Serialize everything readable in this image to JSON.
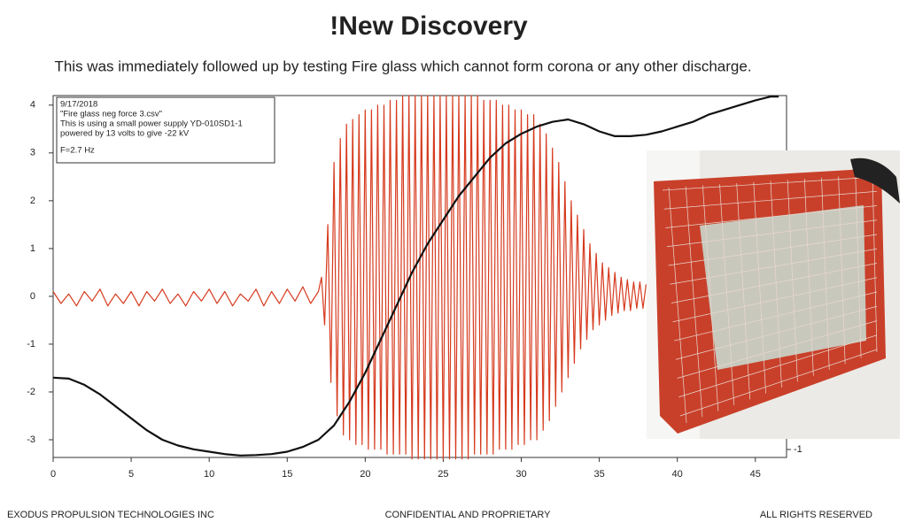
{
  "title": "!New Discovery",
  "subtitle": "This was immediately followed up by testing Fire glass which cannot form corona or any other discharge.",
  "footer": {
    "left": "EXODUS PROPULSION TECHNOLOGIES INC",
    "center": "CONFIDENTIAL  AND  PROPRIETARY",
    "right": "ALL RIGHTS RESERVED"
  },
  "chart_data": {
    "type": "line",
    "annotation": [
      "9/17/2018",
      "\"Fire glass neg force 3.csv\"",
      "This is using a small power supply YD-010SD1-1",
      "powered by 13 volts to give -22 kV",
      "F=2.7 Hz"
    ],
    "xlim": [
      0,
      47
    ],
    "xticks": [
      0,
      5,
      10,
      15,
      20,
      25,
      30,
      35,
      40,
      45
    ],
    "ylim": [
      -3.37,
      4.2
    ],
    "yticks": [
      -3,
      -2,
      -1,
      0,
      1,
      2,
      3,
      4
    ],
    "y2lim": [
      -1.05,
      1.22
    ],
    "y2ticks": [
      -1
    ],
    "series": [
      {
        "color": "#d63a1e",
        "x": [
          0,
          0.5,
          1,
          1.5,
          2,
          2.5,
          3,
          3.5,
          4,
          4.5,
          5,
          5.5,
          6,
          6.5,
          7,
          7.5,
          8,
          8.5,
          9,
          9.5,
          10,
          10.5,
          11,
          11.5,
          12,
          12.5,
          13,
          13.5,
          14,
          14.5,
          15,
          15.5,
          16,
          16.5,
          17,
          17.2,
          17.4,
          17.6,
          17.8,
          18,
          18.2,
          18.4,
          18.6,
          18.8,
          19,
          19.2,
          19.4,
          19.6,
          19.8,
          20,
          20.2,
          20.4,
          20.6,
          20.8,
          21,
          21.2,
          21.4,
          21.6,
          21.8,
          22,
          22.2,
          22.4,
          22.6,
          22.8,
          23,
          23.2,
          23.4,
          23.6,
          23.8,
          24,
          24.2,
          24.4,
          24.6,
          24.8,
          25,
          25.2,
          25.4,
          25.6,
          25.8,
          26,
          26.2,
          26.4,
          26.6,
          26.8,
          27,
          27.2,
          27.4,
          27.6,
          27.8,
          28,
          28.2,
          28.4,
          28.6,
          28.8,
          29,
          29.2,
          29.4,
          29.6,
          29.8,
          30,
          30.2,
          30.4,
          30.6,
          30.8,
          31,
          31.2,
          31.4,
          31.6,
          31.8,
          32,
          32.2,
          32.4,
          32.6,
          32.8,
          33,
          33.2,
          33.4,
          33.6,
          33.8,
          34,
          34.2,
          34.4,
          34.6,
          34.8,
          35,
          35.2,
          35.4,
          35.6,
          35.8,
          36,
          36.2,
          36.4,
          36.6,
          36.8,
          37,
          37.2,
          37.4,
          37.6,
          37.8,
          38
        ],
        "values": [
          0.1,
          -0.15,
          0.05,
          -0.2,
          0.1,
          -0.1,
          0.15,
          -0.2,
          0.05,
          -0.15,
          0.1,
          -0.2,
          0.1,
          -0.1,
          0.15,
          -0.15,
          0.05,
          -0.2,
          0.1,
          -0.1,
          0.15,
          -0.15,
          0.1,
          -0.2,
          0.05,
          -0.1,
          0.15,
          -0.2,
          0.1,
          -0.15,
          0.15,
          -0.1,
          0.2,
          -0.15,
          0.1,
          0.4,
          -0.6,
          1.5,
          -1.8,
          2.8,
          -2.5,
          3.3,
          -2.9,
          3.6,
          -3.0,
          3.7,
          -3.1,
          3.8,
          -3.1,
          3.9,
          -3.2,
          3.9,
          -3.2,
          4.0,
          -3.2,
          4.0,
          -3.3,
          4.1,
          -3.3,
          4.1,
          -3.3,
          4.2,
          -3.3,
          4.2,
          -3.4,
          4.2,
          -3.4,
          4.2,
          -3.4,
          4.2,
          -3.4,
          4.2,
          -3.4,
          4.2,
          -3.4,
          4.2,
          -3.4,
          4.2,
          -3.4,
          4.2,
          -3.4,
          4.2,
          -3.4,
          4.2,
          -3.3,
          4.2,
          -3.3,
          4.1,
          -3.3,
          4.1,
          -3.3,
          4.1,
          -3.2,
          4.0,
          -3.2,
          4.0,
          -3.2,
          3.9,
          -3.1,
          3.9,
          -3.1,
          3.8,
          -3.0,
          3.8,
          -3.0,
          3.6,
          -2.8,
          3.4,
          -2.6,
          3.1,
          -2.3,
          2.8,
          -2.0,
          2.4,
          -1.7,
          2.0,
          -1.4,
          1.7,
          -1.1,
          1.4,
          -0.9,
          1.1,
          -0.7,
          0.9,
          -0.6,
          0.7,
          -0.5,
          0.6,
          -0.4,
          0.5,
          -0.35,
          0.4,
          -0.3,
          0.35,
          -0.3,
          0.3,
          -0.25,
          0.3,
          -0.25,
          0.25
        ]
      },
      {
        "color": "#111111",
        "x": [
          0,
          1,
          2,
          3,
          4,
          5,
          6,
          7,
          8,
          9,
          10,
          11,
          12,
          13,
          14,
          15,
          16,
          17,
          18,
          19,
          20,
          21,
          22,
          23,
          24,
          25,
          26,
          27,
          28,
          29,
          30,
          31,
          32,
          33,
          34,
          35,
          36,
          37,
          38,
          39,
          40,
          41,
          42,
          43,
          44,
          45,
          46,
          46.5
        ],
        "values": [
          -1.7,
          -1.72,
          -1.85,
          -2.05,
          -2.3,
          -2.55,
          -2.8,
          -3.0,
          -3.12,
          -3.2,
          -3.25,
          -3.3,
          -3.33,
          -3.32,
          -3.3,
          -3.25,
          -3.15,
          -3.0,
          -2.7,
          -2.2,
          -1.6,
          -0.9,
          -0.2,
          0.5,
          1.1,
          1.6,
          2.1,
          2.5,
          2.9,
          3.2,
          3.4,
          3.55,
          3.65,
          3.7,
          3.6,
          3.45,
          3.35,
          3.35,
          3.38,
          3.45,
          3.55,
          3.65,
          3.8,
          3.9,
          4.0,
          4.1,
          4.18,
          4.18
        ]
      }
    ]
  }
}
